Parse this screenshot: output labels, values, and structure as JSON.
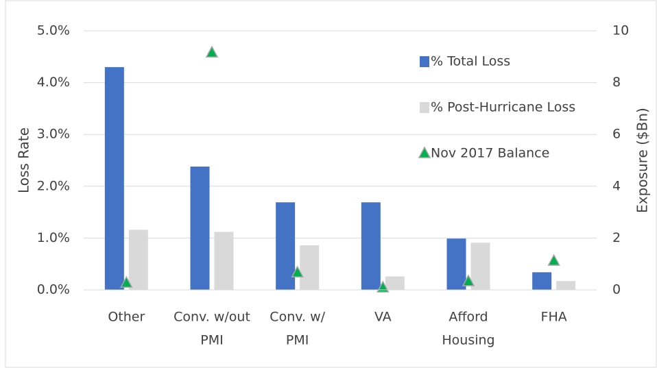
{
  "chart_data": {
    "type": "bar",
    "categories": [
      [
        "Other"
      ],
      [
        "Conv. w/out",
        "PMI"
      ],
      [
        "Conv. w/",
        "PMI"
      ],
      [
        "VA"
      ],
      [
        "Afford",
        "Housing"
      ],
      [
        "FHA"
      ]
    ],
    "series": [
      {
        "name": "% Total Loss",
        "color": "#4472c4",
        "values": [
          4.3,
          2.38,
          1.69,
          1.69,
          0.99,
          0.34
        ]
      },
      {
        "name": "% Post-Hurricane Loss",
        "color": "#d9d9d9",
        "values": [
          1.16,
          1.12,
          0.86,
          0.26,
          0.91,
          0.17
        ]
      },
      {
        "name": "Nov 2017 Balance",
        "color": "#00b050",
        "type": "scatter",
        "marker": "triangle",
        "axis": "y2",
        "values": [
          0.26,
          9.15,
          0.66,
          0.08,
          0.32,
          1.11
        ]
      }
    ],
    "ylabel": "Loss Rate",
    "y2label": "Exposure ($Bn)",
    "ylim": [
      0,
      5
    ],
    "yticks": [
      {
        "value": 0,
        "label": "0.0%"
      },
      {
        "value": 1,
        "label": "1.0%"
      },
      {
        "value": 2,
        "label": "2.0%"
      },
      {
        "value": 3,
        "label": "3.0%"
      },
      {
        "value": 4,
        "label": "4.0%"
      },
      {
        "value": 5,
        "label": "5.0%"
      }
    ],
    "y2lim": [
      0,
      10
    ],
    "y2ticks": [
      0,
      2,
      4,
      6,
      8,
      10
    ],
    "grid": true,
    "legend": "top-right"
  }
}
